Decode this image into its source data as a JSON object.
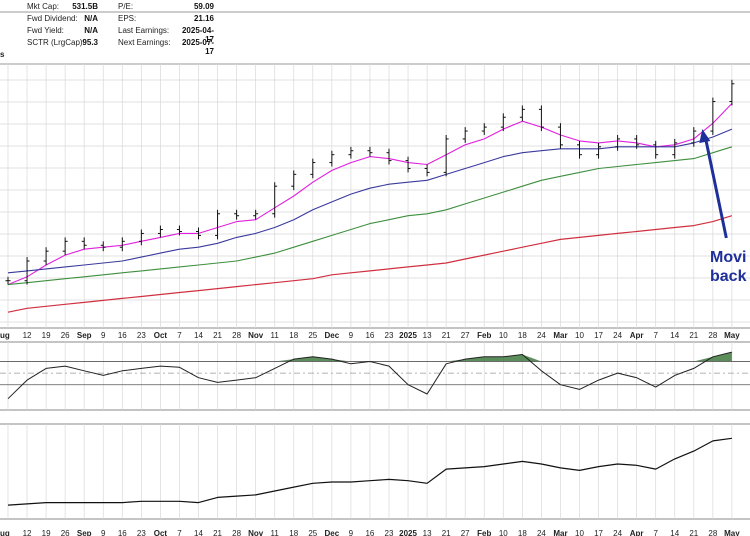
{
  "stats": [
    {
      "label": "Mkt Cap:",
      "value": "531.5B"
    },
    {
      "label": "Fwd Dividend:",
      "value": "N/A"
    },
    {
      "label": "Fwd Yield:",
      "value": "N/A"
    },
    {
      "label": "SCTR (LrgCap):",
      "value": "95.3"
    },
    {
      "label": "P/E:",
      "value": "59.09"
    },
    {
      "label": "EPS:",
      "value": "21.16"
    },
    {
      "label": "Last Earnings:",
      "value": "2025-04-17"
    },
    {
      "label": "Next Earnings:",
      "value": "2025-07-17"
    }
  ],
  "left_edge_fragment": "s",
  "annotation": {
    "line1": "Movi",
    "line2": "back"
  },
  "colors": {
    "price": "#111111",
    "ma_short": "#e020e0",
    "ma_mid": "#3a3a9e",
    "ma_long": "#3f8f3f",
    "ma_200": "#d03040",
    "annotation": "#1f2f9a",
    "grid": "#d8d8d8",
    "osc_fill": "#3f7a3f"
  },
  "chart_data": {
    "type": "line",
    "panels": [
      "price",
      "oscillator",
      "cumulative"
    ],
    "x": [
      "Aug",
      "12",
      "19",
      "26",
      "Sep",
      "9",
      "16",
      "23",
      "Oct",
      "7",
      "14",
      "21",
      "28",
      "Nov",
      "11",
      "18",
      "25",
      "Dec",
      "9",
      "16",
      "23",
      "2025",
      "13",
      "21",
      "27",
      "Feb",
      "10",
      "18",
      "24",
      "Mar",
      "10",
      "17",
      "24",
      "Apr",
      "7",
      "14",
      "21",
      "28",
      "May"
    ],
    "ticks_bottom": [
      {
        "label": "ug",
        "idx": 0,
        "month": true
      },
      {
        "label": "12",
        "idx": 1
      },
      {
        "label": "19",
        "idx": 2
      },
      {
        "label": "26",
        "idx": 3
      },
      {
        "label": "Sep",
        "idx": 4,
        "month": true
      },
      {
        "label": "9",
        "idx": 5
      },
      {
        "label": "16",
        "idx": 6
      },
      {
        "label": "23",
        "idx": 7
      },
      {
        "label": "Oct",
        "idx": 8,
        "month": true
      },
      {
        "label": "7",
        "idx": 9
      },
      {
        "label": "14",
        "idx": 10
      },
      {
        "label": "21",
        "idx": 11
      },
      {
        "label": "28",
        "idx": 12
      },
      {
        "label": "Nov",
        "idx": 13,
        "month": true
      },
      {
        "label": "11",
        "idx": 14
      },
      {
        "label": "18",
        "idx": 15
      },
      {
        "label": "25",
        "idx": 16
      },
      {
        "label": "Dec",
        "idx": 17,
        "month": true
      },
      {
        "label": "9",
        "idx": 18
      },
      {
        "label": "16",
        "idx": 19
      },
      {
        "label": "23",
        "idx": 20
      },
      {
        "label": "2025",
        "idx": 21,
        "month": true
      },
      {
        "label": "13",
        "idx": 22
      },
      {
        "label": "21",
        "idx": 23
      },
      {
        "label": "27",
        "idx": 24
      },
      {
        "label": "Feb",
        "idx": 25,
        "month": true
      },
      {
        "label": "10",
        "idx": 26
      },
      {
        "label": "18",
        "idx": 27
      },
      {
        "label": "24",
        "idx": 28
      },
      {
        "label": "Mar",
        "idx": 29,
        "month": true
      },
      {
        "label": "10",
        "idx": 30
      },
      {
        "label": "17",
        "idx": 31
      },
      {
        "label": "24",
        "idx": 32
      },
      {
        "label": "Apr",
        "idx": 33,
        "month": true
      },
      {
        "label": "7",
        "idx": 34
      },
      {
        "label": "14",
        "idx": 35
      },
      {
        "label": "21",
        "idx": 36
      },
      {
        "label": "28",
        "idx": 37
      },
      {
        "label": "May",
        "idx": 38,
        "month": true
      }
    ],
    "series": [
      {
        "key": "price",
        "values": [
          228,
          238,
          243,
          248,
          246,
          245,
          248,
          252,
          254,
          253,
          251,
          262,
          261,
          262,
          276,
          282,
          288,
          292,
          294,
          293,
          289,
          285,
          283,
          300,
          304,
          306,
          311,
          315,
          306,
          297,
          292,
          296,
          300,
          297,
          292,
          298,
          304,
          319,
          328
        ]
      },
      {
        "key": "ma_short",
        "values": [
          226,
          230,
          236,
          241,
          244,
          245,
          246,
          248,
          250,
          252,
          252,
          255,
          258,
          259,
          265,
          271,
          278,
          284,
          288,
          291,
          290,
          288,
          287,
          292,
          297,
          300,
          305,
          309,
          306,
          302,
          299,
          298,
          299,
          298,
          296,
          297,
          300,
          308,
          318
        ]
      },
      {
        "key": "ma_mid",
        "values": [
          232,
          233,
          234,
          235,
          236,
          237,
          238,
          240,
          242,
          244,
          245,
          247,
          250,
          252,
          255,
          259,
          264,
          268,
          272,
          275,
          277,
          278,
          279,
          282,
          285,
          288,
          291,
          293,
          294,
          295,
          295,
          295,
          296,
          296,
          296,
          296,
          298,
          301,
          305
        ]
      },
      {
        "key": "ma_long",
        "values": [
          226,
          227,
          228,
          229,
          230,
          231,
          232,
          233,
          234,
          235,
          236,
          237,
          238,
          240,
          242,
          245,
          248,
          251,
          254,
          257,
          259,
          261,
          262,
          264,
          267,
          270,
          273,
          276,
          279,
          281,
          283,
          285,
          286,
          287,
          288,
          289,
          290,
          293,
          296
        ]
      },
      {
        "key": "ma_200",
        "values": [
          212,
          214,
          215,
          216,
          217,
          218,
          219,
          220,
          221,
          222,
          223,
          224,
          225,
          226,
          227,
          228,
          229,
          231,
          232,
          233,
          234,
          235,
          236,
          237,
          239,
          241,
          243,
          245,
          247,
          249,
          250,
          251,
          252,
          253,
          254,
          255,
          256,
          258,
          261
        ]
      }
    ],
    "oscillator": {
      "values": [
        -22,
        -6,
        4,
        6,
        2,
        -2,
        2,
        4,
        6,
        5,
        -4,
        -8,
        -6,
        -4,
        4,
        12,
        14,
        12,
        8,
        10,
        6,
        -10,
        -18,
        8,
        12,
        14,
        14,
        16,
        2,
        -10,
        -14,
        -6,
        0,
        -4,
        -12,
        -2,
        4,
        14,
        18
      ],
      "upper": 10,
      "lower": -10,
      "fill": "above_upper"
    },
    "cumulative": {
      "values": [
        10,
        11,
        12,
        12,
        12,
        12,
        12,
        13,
        13,
        13,
        12,
        16,
        17,
        18,
        21,
        24,
        27,
        28,
        28,
        29,
        30,
        29,
        27,
        38,
        39,
        40,
        42,
        44,
        42,
        39,
        37,
        40,
        42,
        41,
        38,
        46,
        52,
        60,
        62
      ]
    }
  }
}
